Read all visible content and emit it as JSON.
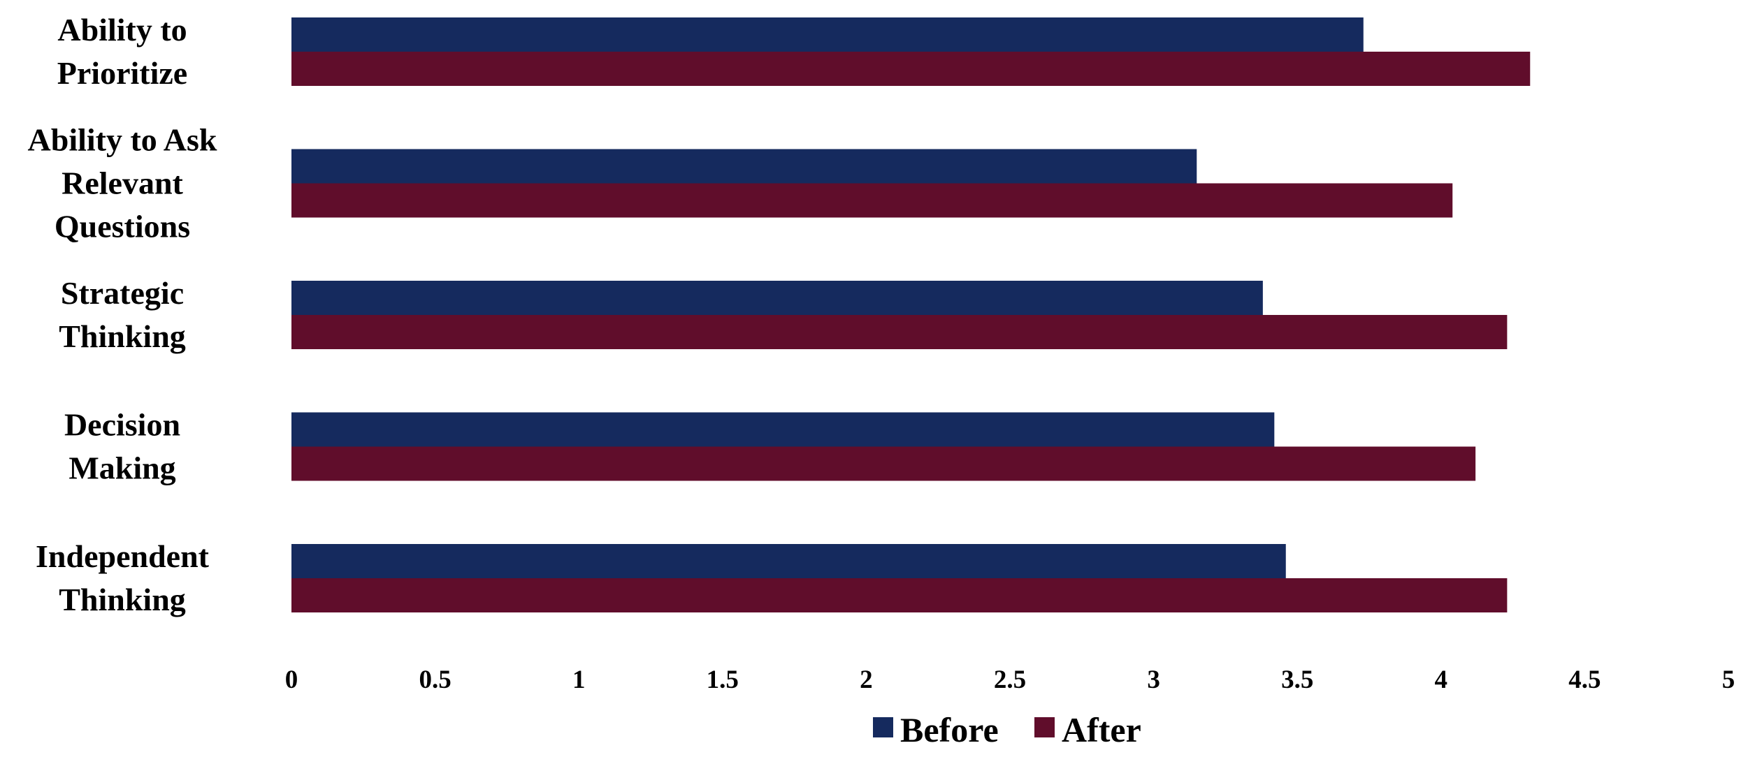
{
  "chart_data": {
    "type": "bar",
    "orientation": "horizontal",
    "categories": [
      "Ability to Prioritize",
      "Ability to Ask Relevant Questions",
      "Strategic Thinking",
      "Decision Making",
      "Independent Thinking"
    ],
    "category_label_lines": [
      [
        "Ability to",
        "Prioritize"
      ],
      [
        "Ability to Ask",
        "Relevant",
        "Questions"
      ],
      [
        "Strategic",
        "Thinking"
      ],
      [
        "Decision",
        "Making"
      ],
      [
        "Independent",
        "Thinking"
      ]
    ],
    "series": [
      {
        "name": "Before",
        "color": "#152a5e",
        "values": [
          3.73,
          3.15,
          3.38,
          3.42,
          3.46
        ]
      },
      {
        "name": "After",
        "color": "#600d2b",
        "values": [
          4.31,
          4.04,
          4.23,
          4.12,
          4.23
        ]
      }
    ],
    "xlim": [
      0,
      5
    ],
    "xticks": [
      0,
      0.5,
      1,
      1.5,
      2,
      2.5,
      3,
      3.5,
      4,
      4.5,
      5
    ],
    "xtick_labels": [
      "0",
      "0.5",
      "1",
      "1.5",
      "2",
      "2.5",
      "3",
      "3.5",
      "4",
      "4.5",
      "5"
    ],
    "title": "",
    "xlabel": "",
    "ylabel": "",
    "grid": false,
    "legend_position": "bottom"
  }
}
